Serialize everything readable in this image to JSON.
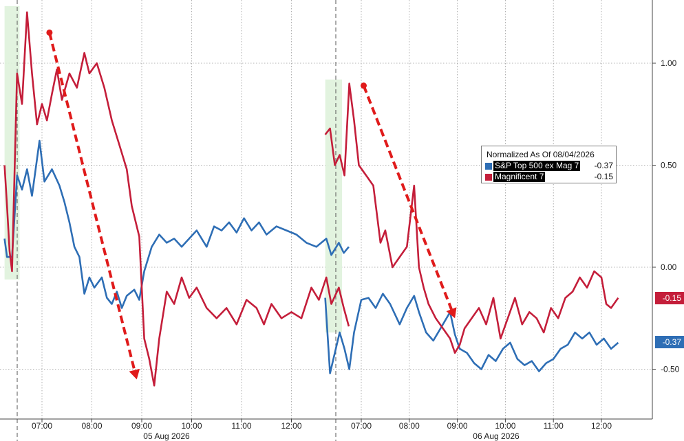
{
  "chart_data": {
    "type": "line",
    "legend": {
      "title": "Normalized As Of 08/04/2026",
      "placement": "top-right"
    },
    "y_ticks": [
      "1.00",
      "0.50",
      "0.00",
      "-0.50"
    ],
    "y_tick_values": [
      1.0,
      0.5,
      0.0,
      -0.5
    ],
    "ylim": [
      -0.72,
      1.3
    ],
    "x_tick_labels": [
      "07:00",
      "08:00",
      "09:00",
      "10:00",
      "11:00",
      "12:00",
      "07:00",
      "08:00",
      "09:00",
      "10:00",
      "11:00",
      "12:00"
    ],
    "date_labels": [
      "05 Aug 2026",
      "06 Aug 2026"
    ],
    "grid": true,
    "series": [
      {
        "name": "S&P Top 500 ex Mag 7",
        "color": "#2e6eb5",
        "last_value": "-0.37",
        "points": [
          [
            "d1",
            6.25,
            0.14
          ],
          [
            "d1",
            6.3,
            0.05
          ],
          [
            "d1",
            6.4,
            0.05
          ],
          [
            "d1",
            6.5,
            0.45
          ],
          [
            "d1",
            6.6,
            0.38
          ],
          [
            "d1",
            6.7,
            0.48
          ],
          [
            "d1",
            6.8,
            0.35
          ],
          [
            "d1",
            6.95,
            0.62
          ],
          [
            "d1",
            7.05,
            0.42
          ],
          [
            "d1",
            7.2,
            0.48
          ],
          [
            "d1",
            7.35,
            0.4
          ],
          [
            "d1",
            7.45,
            0.32
          ],
          [
            "d1",
            7.55,
            0.22
          ],
          [
            "d1",
            7.65,
            0.1
          ],
          [
            "d1",
            7.75,
            0.05
          ],
          [
            "d1",
            7.85,
            -0.13
          ],
          [
            "d1",
            7.95,
            -0.05
          ],
          [
            "d1",
            8.05,
            -0.1
          ],
          [
            "d1",
            8.2,
            -0.05
          ],
          [
            "d1",
            8.3,
            -0.15
          ],
          [
            "d1",
            8.4,
            -0.18
          ],
          [
            "d1",
            8.5,
            -0.12
          ],
          [
            "d1",
            8.6,
            -0.2
          ],
          [
            "d1",
            8.7,
            -0.14
          ],
          [
            "d1",
            8.85,
            -0.11
          ],
          [
            "d1",
            8.95,
            -0.16
          ],
          [
            "d1",
            9.05,
            -0.02
          ],
          [
            "d1",
            9.2,
            0.1
          ],
          [
            "d1",
            9.35,
            0.16
          ],
          [
            "d1",
            9.5,
            0.12
          ],
          [
            "d1",
            9.65,
            0.14
          ],
          [
            "d1",
            9.8,
            0.1
          ],
          [
            "d1",
            9.95,
            0.14
          ],
          [
            "d1",
            10.1,
            0.18
          ],
          [
            "d1",
            10.3,
            0.1
          ],
          [
            "d1",
            10.45,
            0.2
          ],
          [
            "d1",
            10.6,
            0.18
          ],
          [
            "d1",
            10.75,
            0.22
          ],
          [
            "d1",
            10.9,
            0.17
          ],
          [
            "d1",
            11.05,
            0.24
          ],
          [
            "d1",
            11.2,
            0.18
          ],
          [
            "d1",
            11.35,
            0.22
          ],
          [
            "d1",
            11.5,
            0.16
          ],
          [
            "d1",
            11.7,
            0.2
          ],
          [
            "d1",
            11.9,
            0.18
          ],
          [
            "d1",
            12.1,
            0.16
          ],
          [
            "d1",
            12.3,
            0.12
          ],
          [
            "d1",
            12.5,
            0.1
          ],
          [
            "d1",
            12.7,
            0.14
          ],
          [
            "d1",
            12.8,
            0.06
          ],
          [
            "d1",
            12.95,
            0.12
          ],
          [
            "d1",
            13.05,
            0.07
          ],
          [
            "d1",
            13.15,
            0.1
          ],
          [
            "d2",
            6.25,
            -0.15
          ],
          [
            "d2",
            6.35,
            -0.52
          ],
          [
            "d2",
            6.45,
            -0.42
          ],
          [
            "d2",
            6.55,
            -0.32
          ],
          [
            "d2",
            6.65,
            -0.4
          ],
          [
            "d2",
            6.75,
            -0.5
          ],
          [
            "d2",
            6.85,
            -0.32
          ],
          [
            "d2",
            7.0,
            -0.16
          ],
          [
            "d2",
            7.15,
            -0.15
          ],
          [
            "d2",
            7.3,
            -0.2
          ],
          [
            "d2",
            7.45,
            -0.13
          ],
          [
            "d2",
            7.6,
            -0.18
          ],
          [
            "d2",
            7.8,
            -0.28
          ],
          [
            "d2",
            7.95,
            -0.2
          ],
          [
            "d2",
            8.1,
            -0.14
          ],
          [
            "d2",
            8.2,
            -0.22
          ],
          [
            "d2",
            8.35,
            -0.32
          ],
          [
            "d2",
            8.5,
            -0.36
          ],
          [
            "d2",
            8.65,
            -0.3
          ],
          [
            "d2",
            8.85,
            -0.22
          ],
          [
            "d2",
            8.95,
            -0.33
          ],
          [
            "d2",
            9.05,
            -0.4
          ],
          [
            "d2",
            9.2,
            -0.42
          ],
          [
            "d2",
            9.35,
            -0.47
          ],
          [
            "d2",
            9.5,
            -0.5
          ],
          [
            "d2",
            9.65,
            -0.43
          ],
          [
            "d2",
            9.8,
            -0.46
          ],
          [
            "d2",
            9.95,
            -0.4
          ],
          [
            "d2",
            10.1,
            -0.37
          ],
          [
            "d2",
            10.25,
            -0.45
          ],
          [
            "d2",
            10.4,
            -0.48
          ],
          [
            "d2",
            10.55,
            -0.46
          ],
          [
            "d2",
            10.7,
            -0.51
          ],
          [
            "d2",
            10.85,
            -0.47
          ],
          [
            "d2",
            11.0,
            -0.45
          ],
          [
            "d2",
            11.15,
            -0.4
          ],
          [
            "d2",
            11.3,
            -0.38
          ],
          [
            "d2",
            11.45,
            -0.32
          ],
          [
            "d2",
            11.6,
            -0.35
          ],
          [
            "d2",
            11.75,
            -0.32
          ],
          [
            "d2",
            11.9,
            -0.38
          ],
          [
            "d2",
            12.05,
            -0.35
          ],
          [
            "d2",
            12.2,
            -0.4
          ],
          [
            "d2",
            12.35,
            -0.37
          ]
        ]
      },
      {
        "name": "Magnificent 7",
        "color": "#c41e3a",
        "last_value": "-0.15",
        "points": [
          [
            "d1",
            6.25,
            0.5
          ],
          [
            "d1",
            6.3,
            0.3
          ],
          [
            "d1",
            6.35,
            0.08
          ],
          [
            "d1",
            6.4,
            -0.02
          ],
          [
            "d1",
            6.5,
            0.95
          ],
          [
            "d1",
            6.6,
            0.8
          ],
          [
            "d1",
            6.7,
            1.25
          ],
          [
            "d1",
            6.8,
            0.95
          ],
          [
            "d1",
            6.9,
            0.7
          ],
          [
            "d1",
            7.0,
            0.8
          ],
          [
            "d1",
            7.1,
            0.72
          ],
          [
            "d1",
            7.2,
            0.85
          ],
          [
            "d1",
            7.3,
            0.97
          ],
          [
            "d1",
            7.4,
            0.82
          ],
          [
            "d1",
            7.55,
            0.95
          ],
          [
            "d1",
            7.7,
            0.88
          ],
          [
            "d1",
            7.85,
            1.05
          ],
          [
            "d1",
            7.95,
            0.95
          ],
          [
            "d1",
            8.1,
            1.0
          ],
          [
            "d1",
            8.25,
            0.88
          ],
          [
            "d1",
            8.4,
            0.72
          ],
          [
            "d1",
            8.55,
            0.6
          ],
          [
            "d1",
            8.7,
            0.48
          ],
          [
            "d1",
            8.8,
            0.3
          ],
          [
            "d1",
            8.95,
            0.15
          ],
          [
            "d1",
            9.05,
            -0.35
          ],
          [
            "d1",
            9.15,
            -0.45
          ],
          [
            "d1",
            9.25,
            -0.58
          ],
          [
            "d1",
            9.35,
            -0.35
          ],
          [
            "d1",
            9.5,
            -0.12
          ],
          [
            "d1",
            9.65,
            -0.18
          ],
          [
            "d1",
            9.8,
            -0.05
          ],
          [
            "d1",
            9.95,
            -0.15
          ],
          [
            "d1",
            10.1,
            -0.1
          ],
          [
            "d1",
            10.3,
            -0.2
          ],
          [
            "d1",
            10.5,
            -0.25
          ],
          [
            "d1",
            10.7,
            -0.2
          ],
          [
            "d1",
            10.9,
            -0.28
          ],
          [
            "d1",
            11.1,
            -0.16
          ],
          [
            "d1",
            11.3,
            -0.2
          ],
          [
            "d1",
            11.45,
            -0.28
          ],
          [
            "d1",
            11.6,
            -0.18
          ],
          [
            "d1",
            11.8,
            -0.25
          ],
          [
            "d1",
            12.0,
            -0.22
          ],
          [
            "d1",
            12.2,
            -0.25
          ],
          [
            "d1",
            12.4,
            -0.1
          ],
          [
            "d1",
            12.55,
            -0.16
          ],
          [
            "d1",
            12.7,
            -0.05
          ],
          [
            "d1",
            12.8,
            -0.18
          ],
          [
            "d1",
            12.95,
            -0.1
          ],
          [
            "d1",
            13.05,
            -0.2
          ],
          [
            "d1",
            13.15,
            -0.29
          ],
          [
            "d2",
            6.25,
            0.65
          ],
          [
            "d2",
            6.35,
            0.68
          ],
          [
            "d2",
            6.45,
            0.5
          ],
          [
            "d2",
            6.55,
            0.55
          ],
          [
            "d2",
            6.65,
            0.45
          ],
          [
            "d2",
            6.75,
            0.9
          ],
          [
            "d2",
            6.85,
            0.72
          ],
          [
            "d2",
            6.95,
            0.5
          ],
          [
            "d2",
            7.1,
            0.45
          ],
          [
            "d2",
            7.25,
            0.4
          ],
          [
            "d2",
            7.4,
            0.12
          ],
          [
            "d2",
            7.5,
            0.18
          ],
          [
            "d2",
            7.65,
            0.0
          ],
          [
            "d2",
            7.8,
            0.05
          ],
          [
            "d2",
            7.95,
            0.1
          ],
          [
            "d2",
            8.1,
            0.4
          ],
          [
            "d2",
            8.2,
            0.0
          ],
          [
            "d2",
            8.3,
            -0.1
          ],
          [
            "d2",
            8.4,
            -0.18
          ],
          [
            "d2",
            8.55,
            -0.25
          ],
          [
            "d2",
            8.7,
            -0.3
          ],
          [
            "d2",
            8.85,
            -0.35
          ],
          [
            "d2",
            8.95,
            -0.42
          ],
          [
            "d2",
            9.05,
            -0.38
          ],
          [
            "d2",
            9.15,
            -0.3
          ],
          [
            "d2",
            9.3,
            -0.25
          ],
          [
            "d2",
            9.45,
            -0.2
          ],
          [
            "d2",
            9.6,
            -0.28
          ],
          [
            "d2",
            9.75,
            -0.15
          ],
          [
            "d2",
            9.9,
            -0.35
          ],
          [
            "d2",
            10.05,
            -0.25
          ],
          [
            "d2",
            10.2,
            -0.15
          ],
          [
            "d2",
            10.35,
            -0.28
          ],
          [
            "d2",
            10.5,
            -0.22
          ],
          [
            "d2",
            10.65,
            -0.25
          ],
          [
            "d2",
            10.8,
            -0.32
          ],
          [
            "d2",
            10.95,
            -0.2
          ],
          [
            "d2",
            11.1,
            -0.25
          ],
          [
            "d2",
            11.25,
            -0.15
          ],
          [
            "d2",
            11.4,
            -0.12
          ],
          [
            "d2",
            11.55,
            -0.05
          ],
          [
            "d2",
            11.7,
            -0.1
          ],
          [
            "d2",
            11.85,
            -0.02
          ],
          [
            "d2",
            12.0,
            -0.05
          ],
          [
            "d2",
            12.1,
            -0.18
          ],
          [
            "d2",
            12.2,
            -0.2
          ],
          [
            "d2",
            12.35,
            -0.15
          ]
        ]
      }
    ],
    "highlight_bands": [
      {
        "session": "d1",
        "x_start": 6.25,
        "x_end": 6.55,
        "y_top": 1.28,
        "y_bottom": -0.06
      },
      {
        "session": "d2",
        "x_start": 6.25,
        "x_end": 6.6,
        "y_top": 0.92,
        "y_bottom": -0.32
      }
    ],
    "annotation_arrows": [
      {
        "session": "d1",
        "from": [
          7.15,
          1.15
        ],
        "to": [
          8.9,
          -0.55
        ]
      },
      {
        "session": "d2",
        "from": [
          7.05,
          0.89
        ],
        "to": [
          8.95,
          -0.25
        ]
      }
    ]
  }
}
